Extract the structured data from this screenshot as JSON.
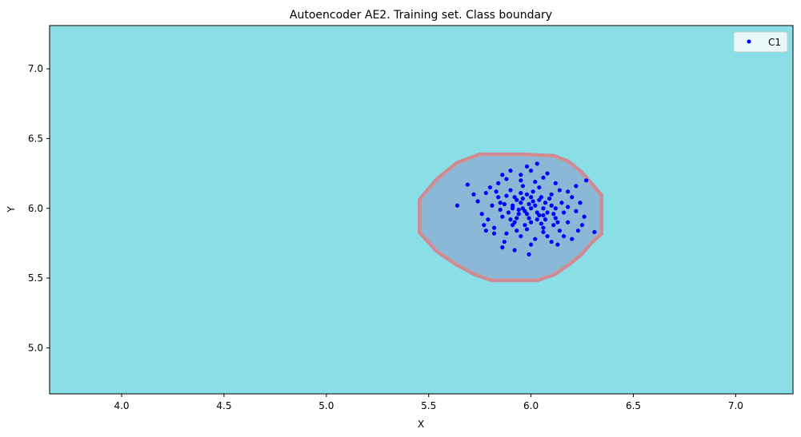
{
  "chart_data": {
    "type": "scatter",
    "title": "Autoencoder AE2. Training set. Class boundary",
    "xlabel": "X",
    "ylabel": "Y",
    "xlim": [
      3.648,
      7.28
    ],
    "ylim": [
      4.67,
      7.31
    ],
    "xticks": [
      4.0,
      4.5,
      5.0,
      5.5,
      6.0,
      6.5,
      7.0
    ],
    "xtick_labels": [
      "4.0",
      "4.5",
      "5.0",
      "5.5",
      "6.0",
      "6.5",
      "7.0"
    ],
    "yticks": [
      5.0,
      5.5,
      6.0,
      6.5,
      7.0
    ],
    "ytick_labels": [
      "5.0",
      "5.5",
      "6.0",
      "6.5",
      "7.0"
    ],
    "grid": false,
    "legend": {
      "placement": "top-right",
      "entries": [
        "C1"
      ]
    },
    "colors": {
      "background_region": "#8adfe6",
      "class_region": "#8ab8d6",
      "boundary": "#d98c8c",
      "points": "#0000ff"
    },
    "boundary": [
      [
        5.46,
        6.06
      ],
      [
        5.46,
        5.83
      ],
      [
        5.54,
        5.7
      ],
      [
        5.64,
        5.6
      ],
      [
        5.73,
        5.53
      ],
      [
        5.81,
        5.49
      ],
      [
        6.03,
        5.49
      ],
      [
        6.11,
        5.53
      ],
      [
        6.18,
        5.6
      ],
      [
        6.24,
        5.67
      ],
      [
        6.3,
        5.77
      ],
      [
        6.34,
        5.82
      ],
      [
        6.34,
        6.09
      ],
      [
        6.3,
        6.16
      ],
      [
        6.24,
        6.26
      ],
      [
        6.18,
        6.33
      ],
      [
        6.11,
        6.37
      ],
      [
        5.95,
        6.38
      ],
      [
        5.75,
        6.38
      ],
      [
        5.64,
        6.32
      ],
      [
        5.54,
        6.2
      ]
    ],
    "series": [
      {
        "name": "C1",
        "points": [
          [
            5.64,
            6.02
          ],
          [
            5.69,
            6.17
          ],
          [
            6.31,
            5.83
          ],
          [
            6.27,
            6.2
          ],
          [
            6.03,
            6.32
          ],
          [
            5.99,
            5.67
          ],
          [
            5.92,
            5.7
          ],
          [
            5.86,
            5.72
          ],
          [
            6.1,
            5.76
          ],
          [
            6.2,
            5.78
          ],
          [
            6.25,
            5.88
          ],
          [
            6.24,
            6.04
          ],
          [
            5.76,
            5.96
          ],
          [
            5.74,
            6.05
          ],
          [
            5.78,
            6.11
          ],
          [
            5.8,
            6.15
          ],
          [
            5.84,
            6.18
          ],
          [
            5.88,
            6.21
          ],
          [
            5.95,
            6.24
          ],
          [
            6.0,
            6.27
          ],
          [
            6.06,
            6.22
          ],
          [
            6.12,
            6.18
          ],
          [
            6.18,
            6.12
          ],
          [
            6.2,
            6.08
          ],
          [
            6.22,
            5.98
          ],
          [
            6.18,
            5.9
          ],
          [
            6.14,
            5.84
          ],
          [
            6.08,
            5.8
          ],
          [
            6.02,
            5.78
          ],
          [
            5.95,
            5.8
          ],
          [
            5.88,
            5.82
          ],
          [
            5.82,
            5.86
          ],
          [
            5.79,
            5.92
          ],
          [
            5.81,
            6.02
          ],
          [
            5.84,
            6.08
          ],
          [
            5.9,
            6.13
          ],
          [
            5.96,
            6.16
          ],
          [
            6.04,
            6.15
          ],
          [
            6.1,
            6.1
          ],
          [
            6.15,
            6.04
          ],
          [
            6.16,
            5.97
          ],
          [
            6.13,
            5.9
          ],
          [
            6.06,
            5.86
          ],
          [
            5.98,
            5.85
          ],
          [
            5.91,
            5.88
          ],
          [
            5.86,
            5.94
          ],
          [
            5.87,
            6.03
          ],
          [
            5.92,
            6.08
          ],
          [
            5.98,
            6.1
          ],
          [
            6.05,
            6.08
          ],
          [
            6.1,
            6.02
          ],
          [
            6.11,
            5.96
          ],
          [
            6.07,
            5.92
          ],
          [
            6.0,
            5.9
          ],
          [
            5.93,
            5.93
          ],
          [
            5.91,
            6.0
          ],
          [
            5.95,
            6.04
          ],
          [
            6.01,
            6.05
          ],
          [
            6.06,
            6.0
          ],
          [
            6.04,
            5.95
          ],
          [
            5.98,
            5.96
          ],
          [
            5.96,
            6.0
          ],
          [
            6.0,
            6.0
          ],
          [
            6.02,
            6.02
          ],
          [
            5.97,
            5.98
          ],
          [
            6.03,
            5.97
          ],
          [
            5.94,
            5.96
          ],
          [
            5.99,
            6.03
          ],
          [
            5.93,
            6.06
          ],
          [
            6.07,
            6.04
          ],
          [
            6.08,
            5.97
          ],
          [
            5.89,
            5.97
          ],
          [
            5.85,
            5.99
          ],
          [
            6.12,
            6.0
          ],
          [
            6.01,
            6.12
          ],
          [
            5.97,
            5.88
          ],
          [
            6.05,
            5.89
          ],
          [
            5.9,
            5.92
          ],
          [
            6.09,
            6.07
          ],
          [
            5.95,
            6.11
          ],
          [
            6.14,
            6.13
          ],
          [
            5.83,
            6.12
          ],
          [
            5.82,
            5.82
          ],
          [
            6.16,
            5.8
          ],
          [
            5.87,
            5.76
          ],
          [
            6.0,
            5.74
          ],
          [
            6.13,
            5.74
          ],
          [
            6.23,
            5.84
          ],
          [
            5.77,
            5.88
          ],
          [
            5.72,
            6.1
          ],
          [
            6.26,
            5.94
          ],
          [
            6.22,
            6.16
          ],
          [
            6.08,
            6.25
          ],
          [
            5.9,
            6.27
          ],
          [
            5.98,
            6.3
          ],
          [
            5.86,
            6.24
          ],
          [
            5.78,
            5.84
          ],
          [
            5.93,
            5.84
          ],
          [
            6.06,
            5.83
          ],
          [
            6.11,
            5.88
          ],
          [
            5.95,
            6.2
          ],
          [
            6.02,
            6.19
          ],
          [
            5.85,
            6.04
          ],
          [
            6.18,
            6.01
          ],
          [
            5.88,
            6.09
          ],
          [
            6.12,
            5.93
          ],
          [
            5.92,
            5.9
          ],
          [
            6.04,
            6.06
          ],
          [
            5.96,
            6.07
          ],
          [
            5.99,
            5.93
          ],
          [
            6.06,
            5.95
          ],
          [
            5.91,
            6.02
          ],
          [
            6.0,
            6.08
          ],
          [
            5.94,
            5.99
          ],
          [
            6.03,
            5.92
          ]
        ]
      }
    ]
  }
}
